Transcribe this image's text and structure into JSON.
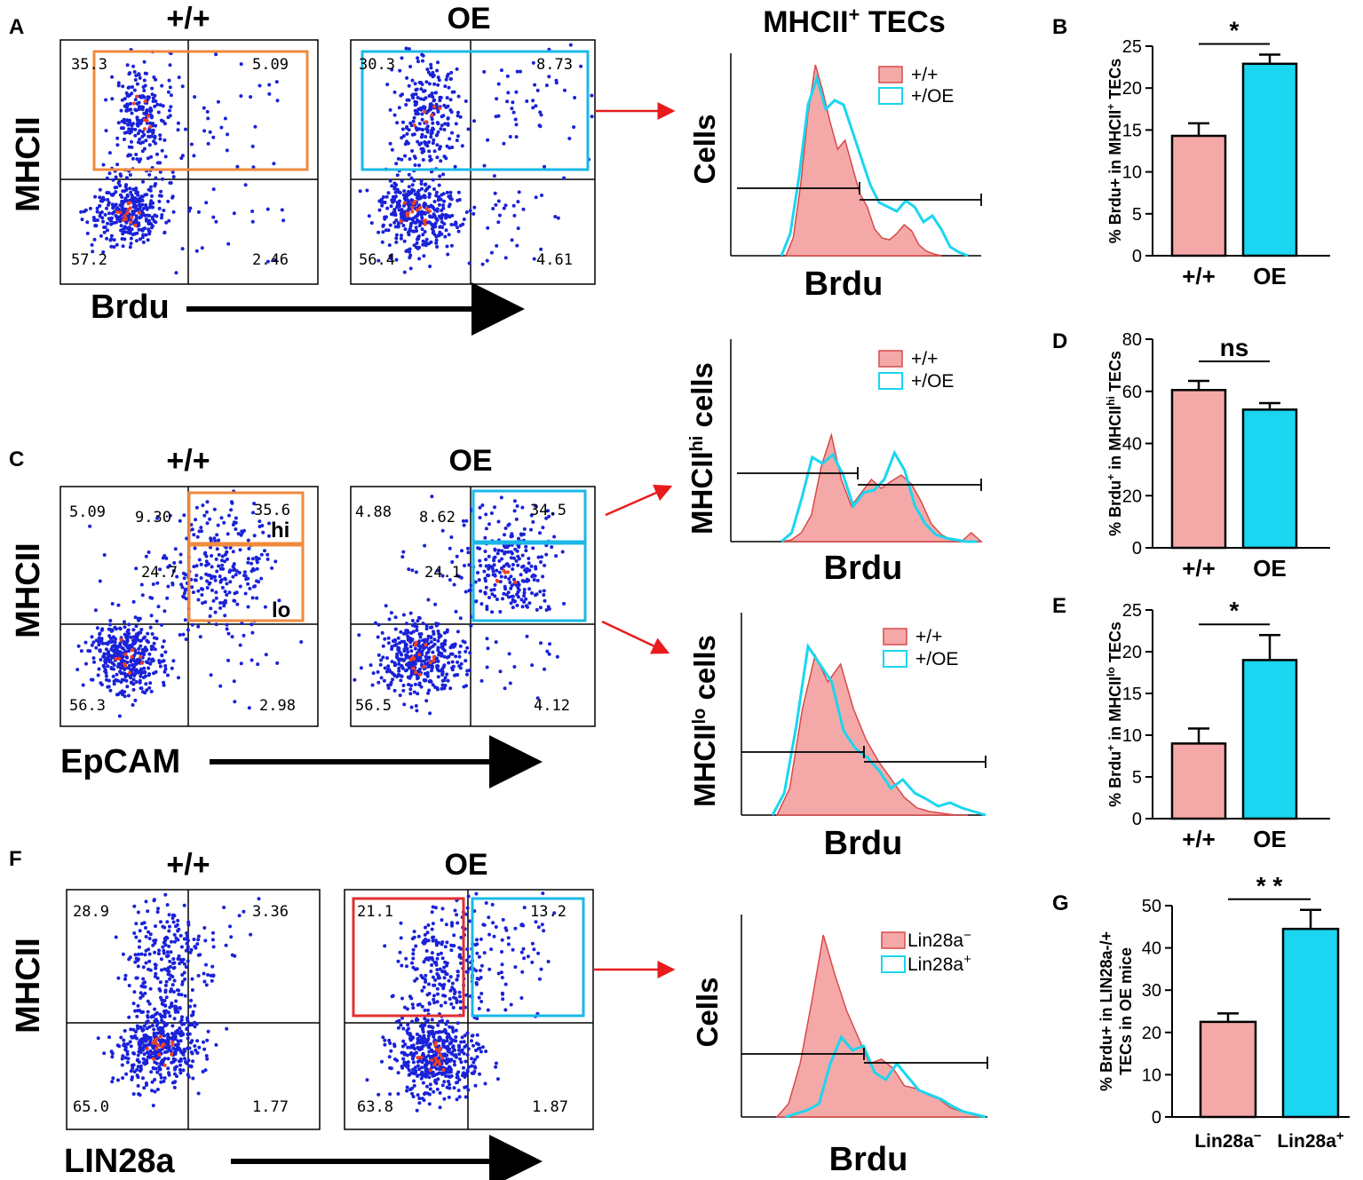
{
  "panel_letters": {
    "A": "A",
    "B": "B",
    "C": "C",
    "D": "D",
    "E": "E",
    "F": "F",
    "G": "G"
  },
  "colors": {
    "wt": "#f4a9a8",
    "wt_edge": "#d84a4a",
    "oe": "#1ad6f0",
    "orange_gate": "#f08a3c",
    "cyan_gate": "#1ab8e8",
    "red_gate": "#e03030",
    "dots": "#1a22d8",
    "hot": "#f04020",
    "arrow": "#e81c1c"
  },
  "panel_A": {
    "axis_y": "MHCII",
    "axis_x": "Brdu",
    "plots": [
      {
        "title": "+/+",
        "q_ul": "35.3",
        "q_ur": "5.09",
        "q_ll": "57.2",
        "q_lr": "2.46"
      },
      {
        "title": "OE",
        "q_ul": "30.3",
        "q_ur": "8.73",
        "q_ll": "56.4",
        "q_lr": "4.61"
      }
    ]
  },
  "panel_C": {
    "axis_y": "MHCII",
    "axis_x": "EpCAM",
    "plots": [
      {
        "title": "+/+",
        "q_ul": "5.09",
        "q_um": "9.30",
        "q_hi": "35.6",
        "q_mid": "24.7",
        "q_ll": "56.3",
        "q_lr": "2.98",
        "hi_label": "hi",
        "lo_label": "lo"
      },
      {
        "title": "OE",
        "q_ul": "4.88",
        "q_um": "8.62",
        "q_hi": "34.5",
        "q_mid": "24.1",
        "q_ll": "56.5",
        "q_lr": "4.12"
      }
    ]
  },
  "panel_F": {
    "axis_y": "MHCII",
    "axis_x": "LIN28a",
    "plots": [
      {
        "title": "+/+",
        "q_ul": "28.9",
        "q_ur": "3.36",
        "q_ll": "65.0",
        "q_lr": "1.77"
      },
      {
        "title": "OE",
        "q_ul": "21.1",
        "q_ur": "13.2",
        "q_ll": "63.8",
        "q_lr": "1.87"
      }
    ]
  },
  "histograms": {
    "h1": {
      "title": "MHCII",
      "title_sup": "+",
      "title_rest": " TECs",
      "ylabel": "Cells",
      "xlabel": "Brdu",
      "legend": [
        "+/+",
        "+/OE"
      ]
    },
    "h2": {
      "ylabel_main": "MHCII",
      "ylabel_sup": "hi",
      "ylabel_rest": " cells",
      "xlabel": "Brdu",
      "legend": [
        "+/+",
        "+/OE"
      ]
    },
    "h3": {
      "ylabel_main": "MHCII",
      "ylabel_sup": "lo",
      "ylabel_rest": " cells",
      "xlabel": "Brdu",
      "legend": [
        "+/+",
        "+/OE"
      ]
    },
    "h4": {
      "ylabel": "Cells",
      "xlabel": "Brdu",
      "legend_main": [
        "Lin28a",
        "Lin28a"
      ],
      "legend_sup": [
        "−",
        "+"
      ]
    }
  },
  "chart_data": [
    {
      "type": "bar",
      "panel": "B",
      "categories": [
        "+/+",
        "OE"
      ],
      "values": [
        14.3,
        22.9
      ],
      "errors": [
        1.5,
        1.1
      ],
      "ylim": [
        0,
        25
      ],
      "yticks": [
        0,
        5,
        10,
        15,
        20,
        25
      ],
      "ylabel_a": "% Brdu+ in MHCII",
      "ylabel_sup": "+",
      "ylabel_b": " TECs",
      "significance": "*"
    },
    {
      "type": "bar",
      "panel": "D",
      "categories": [
        "+/+",
        "OE"
      ],
      "values": [
        60.5,
        53
      ],
      "errors": [
        3.5,
        2.5
      ],
      "ylim": [
        0,
        80
      ],
      "yticks": [
        0,
        20,
        40,
        60,
        80
      ],
      "ylabel_a": "% Brdu",
      "ylabel_sup": "+",
      "ylabel_b": " in MHCII",
      "ylabel_sup2": "hi",
      "ylabel_c": " TECs",
      "significance": "ns"
    },
    {
      "type": "bar",
      "panel": "E",
      "categories": [
        "+/+",
        "OE"
      ],
      "values": [
        9,
        19
      ],
      "errors": [
        1.8,
        3
      ],
      "ylim": [
        0,
        25
      ],
      "yticks": [
        0,
        5,
        10,
        15,
        20,
        25
      ],
      "ylabel_a": "% Brdu",
      "ylabel_sup": "+",
      "ylabel_b": " in MHCII",
      "ylabel_sup2": "lo",
      "ylabel_c": " TECs",
      "significance": "*"
    },
    {
      "type": "bar",
      "panel": "G",
      "categories": [
        "Lin28a",
        "Lin28a"
      ],
      "category_sup": [
        "−",
        "+"
      ],
      "values": [
        22.5,
        44.5
      ],
      "errors": [
        2,
        4.5
      ],
      "ylim": [
        0,
        50
      ],
      "yticks": [
        0,
        10,
        20,
        30,
        40,
        50
      ],
      "ylabel_line1": "% Brdu+ in LIN28a-/+",
      "ylabel_line2": "TECs in OE mice",
      "significance": "* *"
    }
  ]
}
